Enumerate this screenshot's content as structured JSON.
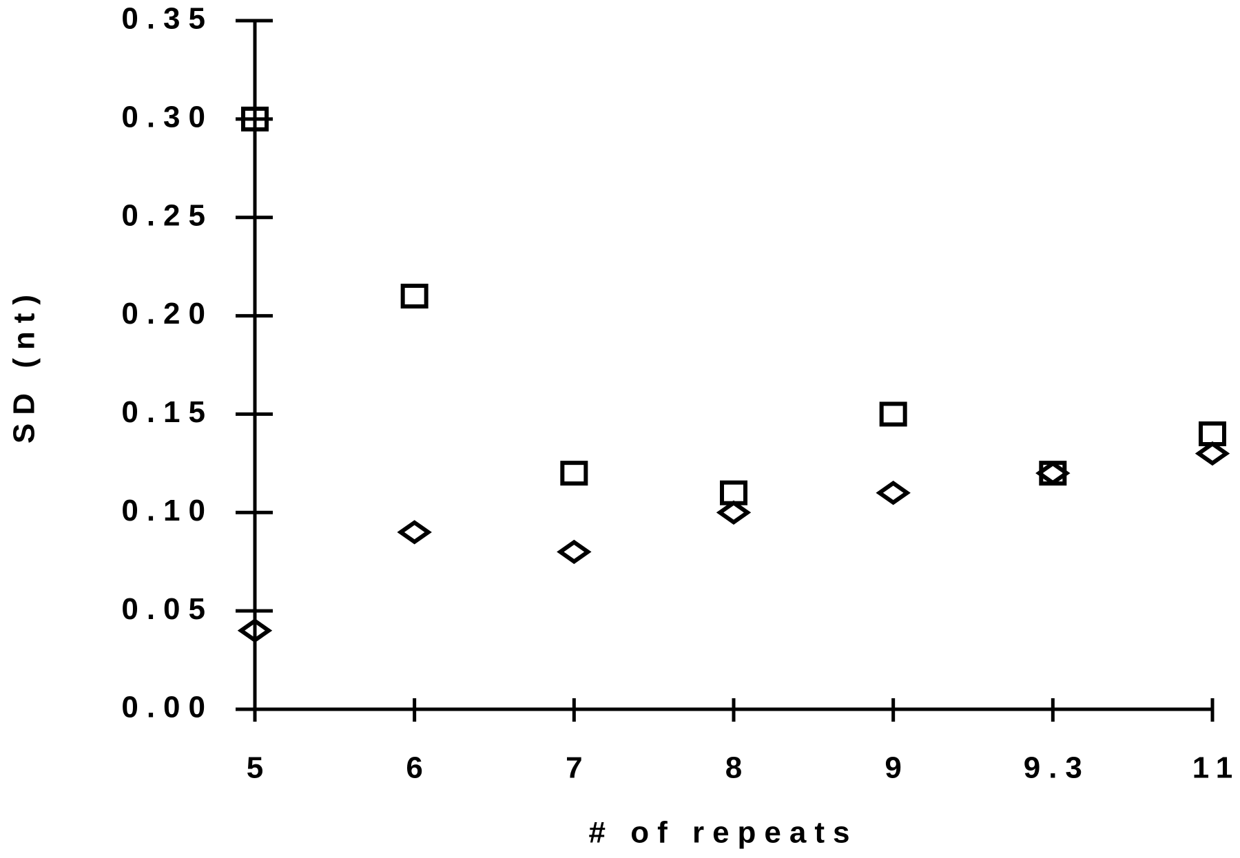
{
  "chart_data": {
    "type": "scatter",
    "x_label": "# of repeats",
    "y_label": "SD (nt)",
    "categories": [
      "5",
      "6",
      "7",
      "8",
      "9",
      "9.3",
      "11"
    ],
    "series": [
      {
        "marker": "square",
        "color": "#000000",
        "values": [
          0.3,
          0.21,
          0.12,
          0.11,
          0.15,
          0.12,
          0.14
        ]
      },
      {
        "marker": "diamond",
        "color": "#000000",
        "values": [
          0.04,
          0.09,
          0.08,
          0.1,
          0.11,
          0.12,
          0.13
        ]
      }
    ],
    "ylim": [
      0,
      0.35
    ],
    "yticks": [
      {
        "value": 0,
        "label": "0.00"
      },
      0.05,
      {
        "value": 0.1,
        "label": "0.10"
      },
      0.15,
      {
        "value": 0.2,
        "label": "0.20"
      },
      0.25,
      {
        "value": 0.3,
        "label": "0.30"
      },
      0.35
    ],
    "grid": false
  }
}
